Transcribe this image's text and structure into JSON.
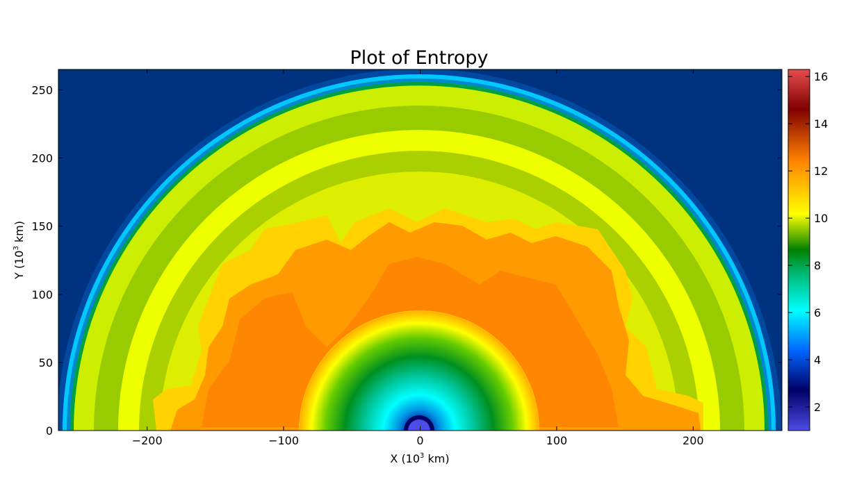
{
  "chart_data": {
    "type": "heatmap",
    "title": "Plot of Entropy",
    "xlabel": "X (10",
    "xlabel_sup": "3",
    "xlabel_unit": " km)",
    "ylabel": "Y (10",
    "ylabel_sup": "3",
    "ylabel_unit": " km)",
    "xlim": [
      -265,
      265
    ],
    "ylim": [
      0,
      265
    ],
    "x_ticks": [
      -200,
      -100,
      0,
      100,
      200
    ],
    "x_tick_labels": [
      "−200",
      "−100",
      "0",
      "100",
      "200"
    ],
    "y_ticks": [
      0,
      50,
      100,
      150,
      200,
      250
    ],
    "y_tick_labels": [
      "0",
      "50",
      "100",
      "150",
      "200",
      "250"
    ],
    "colorbar": {
      "range": [
        1.0,
        16.3
      ],
      "ticks": [
        2,
        4,
        6,
        8,
        10,
        12,
        14,
        16
      ],
      "tick_labels": [
        "2",
        "4",
        "6",
        "8",
        "10",
        "12",
        "14",
        "16"
      ]
    },
    "colors": {
      "background": "#00337f",
      "colormap": [
        "#4c4ce6",
        "#000066",
        "#0066ff",
        "#00ffff",
        "#00b266",
        "#008000",
        "#ffff00",
        "#ff8000",
        "#800000",
        "#e64c4c"
      ]
    },
    "regions": [
      {
        "name": "center",
        "r_outer": 12,
        "entropy": 2.0
      },
      {
        "name": "core gradient",
        "r_inner": 12,
        "r_outer": 85,
        "entropy_inner": 4.5,
        "entropy_outer": 10.5
      },
      {
        "name": "convective plumes",
        "r_inner": 85,
        "r_outer": 210,
        "entropy": 11.2
      },
      {
        "name": "post-shock envelope",
        "r_outer": 245,
        "entropy": 9.0
      },
      {
        "name": "shock front",
        "r": 250,
        "entropy": 5.5
      },
      {
        "name": "pre-shock medium",
        "entropy": 4.2
      }
    ],
    "grid": false
  }
}
